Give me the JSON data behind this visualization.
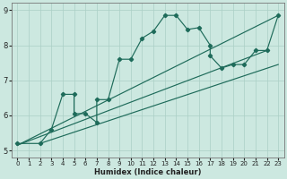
{
  "xlabel": "Humidex (Indice chaleur)",
  "bg_color": "#cce8e0",
  "line_color": "#1e6b5a",
  "grid_color": "#aacfc5",
  "xlim": [
    -0.5,
    23.5
  ],
  "ylim": [
    4.8,
    9.2
  ],
  "xticks": [
    0,
    1,
    2,
    3,
    4,
    5,
    6,
    7,
    8,
    9,
    10,
    11,
    12,
    13,
    14,
    15,
    16,
    17,
    18,
    19,
    20,
    21,
    22,
    23
  ],
  "yticks": [
    5,
    6,
    7,
    8,
    9
  ],
  "curve_x": [
    0,
    2,
    3,
    4,
    5,
    5,
    6,
    7,
    7,
    8,
    9,
    10,
    11,
    12,
    13,
    14,
    15,
    16,
    17,
    17,
    18,
    19,
    20,
    21,
    22,
    23
  ],
  "curve_y": [
    5.2,
    5.2,
    5.6,
    6.6,
    6.6,
    6.05,
    6.05,
    5.8,
    6.45,
    6.45,
    7.6,
    7.6,
    8.2,
    8.4,
    8.85,
    8.85,
    8.45,
    8.5,
    8.0,
    7.7,
    7.35,
    7.45,
    7.45,
    7.85,
    7.85,
    8.85
  ],
  "line1_x": [
    0,
    23
  ],
  "line1_y": [
    5.15,
    8.85
  ],
  "line2_x": [
    2,
    23
  ],
  "line2_y": [
    5.2,
    7.45
  ],
  "line3_x": [
    0,
    22
  ],
  "line3_y": [
    5.15,
    7.85
  ]
}
